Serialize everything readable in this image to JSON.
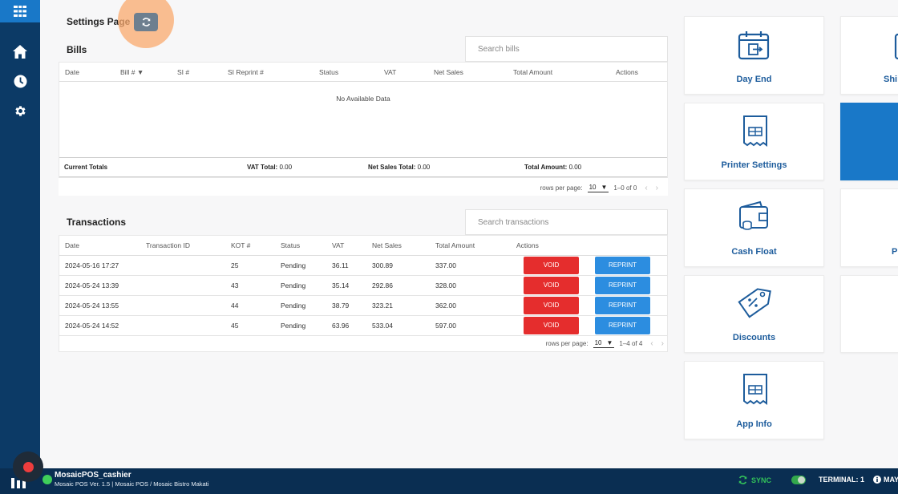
{
  "page": {
    "title": "Settings Page"
  },
  "bills": {
    "title": "Bills",
    "search_placeholder": "Search bills",
    "columns": [
      "Date",
      "Bill #",
      "SI #",
      "SI Reprint #",
      "Status",
      "VAT",
      "Net Sales",
      "Total Amount",
      "Actions"
    ],
    "empty_text": "No Available Data",
    "totals": {
      "label": "Current Totals",
      "vat_label": "VAT Total:",
      "vat_value": "0.00",
      "net_label": "Net Sales Total:",
      "net_value": "0.00",
      "total_label": "Total Amount:",
      "total_value": "0.00"
    },
    "pager": {
      "rows_label": "rows per page:",
      "rows_value": "10",
      "range": "1–0 of 0"
    }
  },
  "transactions": {
    "title": "Transactions",
    "search_placeholder": "Search transactions",
    "columns": [
      "Date",
      "Transaction ID",
      "KOT #",
      "Status",
      "VAT",
      "Net Sales",
      "Total Amount",
      "Actions"
    ],
    "rows": [
      {
        "date": "2024-05-16 17:27",
        "id": "",
        "kot": "25",
        "status": "Pending",
        "vat": "36.11",
        "net": "300.89",
        "total": "337.00"
      },
      {
        "date": "2024-05-24 13:39",
        "id": "",
        "kot": "43",
        "status": "Pending",
        "vat": "35.14",
        "net": "292.86",
        "total": "328.00"
      },
      {
        "date": "2024-05-24 13:55",
        "id": "",
        "kot": "44",
        "status": "Pending",
        "vat": "38.79",
        "net": "323.21",
        "total": "362.00"
      },
      {
        "date": "2024-05-24 14:52",
        "id": "",
        "kot": "45",
        "status": "Pending",
        "vat": "63.96",
        "net": "533.04",
        "total": "597.00"
      }
    ],
    "void_label": "VOID",
    "reprint_label": "REPRINT",
    "pager": {
      "rows_label": "rows per page:",
      "rows_value": "10",
      "range": "1–4 of 4"
    }
  },
  "tiles": {
    "day_end": "Day End",
    "shift": "Shi",
    "printer": "Printer Settings",
    "cash_float": "Cash Float",
    "p_partial": "P",
    "discounts": "Discounts",
    "app_info": "App Info"
  },
  "footer": {
    "user": "MosaicPOS_cashier",
    "sub": "Mosaic POS Ver. 1.5 | Mosaic POS / Mosaic Bistro Makati",
    "sync": "SYNC",
    "terminal": "TERMINAL: 1",
    "info": "MAY"
  },
  "colors": {
    "rail": "#0c3a66",
    "accent": "#1978c8",
    "void": "#e52d2d",
    "reprint": "#2c8de0",
    "tile_label": "#1d5c9c"
  }
}
